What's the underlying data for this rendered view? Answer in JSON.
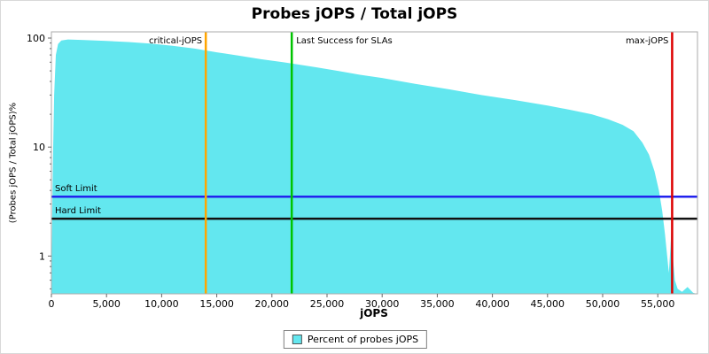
{
  "chart_data": {
    "type": "area",
    "title": "Probes jOPS / Total jOPS",
    "xlabel": "jOPS",
    "ylabel": "(Probes jOPS / Total jOPS)%",
    "x_scale": "linear",
    "y_scale": "log",
    "xlim": [
      0,
      58600
    ],
    "ylim": [
      0.45,
      114
    ],
    "grid": false,
    "x_ticks": {
      "values": [
        0,
        5000,
        10000,
        15000,
        20000,
        25000,
        30000,
        35000,
        40000,
        45000,
        50000,
        55000
      ],
      "labels": [
        "0",
        "5,000",
        "10,000",
        "15,000",
        "20,000",
        "25,000",
        "30,000",
        "35,000",
        "40,000",
        "45,000",
        "50,000",
        "55,000"
      ]
    },
    "y_ticks": {
      "values": [
        1,
        10,
        100
      ],
      "labels": [
        "1",
        "10",
        "100"
      ]
    },
    "series": [
      {
        "name": "Percent of probes jOPS",
        "color": "#63E7EF",
        "points": [
          [
            0,
            0.5
          ],
          [
            120,
            6
          ],
          [
            250,
            30
          ],
          [
            400,
            70
          ],
          [
            600,
            88
          ],
          [
            900,
            95
          ],
          [
            1500,
            97
          ],
          [
            3000,
            96
          ],
          [
            5000,
            94
          ],
          [
            7000,
            92
          ],
          [
            9000,
            89
          ],
          [
            11000,
            85
          ],
          [
            13000,
            80
          ],
          [
            14000,
            77
          ],
          [
            15000,
            74
          ],
          [
            17000,
            69
          ],
          [
            19000,
            64
          ],
          [
            21000,
            60
          ],
          [
            22000,
            58
          ],
          [
            24000,
            54
          ],
          [
            26000,
            50
          ],
          [
            28000,
            46
          ],
          [
            30000,
            43
          ],
          [
            33000,
            38
          ],
          [
            36000,
            34
          ],
          [
            39000,
            30
          ],
          [
            42000,
            27
          ],
          [
            45000,
            24
          ],
          [
            47000,
            22
          ],
          [
            49000,
            20
          ],
          [
            50500,
            18
          ],
          [
            51800,
            16
          ],
          [
            52800,
            14
          ],
          [
            53600,
            11
          ],
          [
            54200,
            8.5
          ],
          [
            54700,
            6
          ],
          [
            55100,
            4
          ],
          [
            55400,
            2.6
          ],
          [
            55650,
            1.6
          ],
          [
            55850,
            1.0
          ],
          [
            56000,
            0.7
          ],
          [
            56150,
            1.2
          ],
          [
            56280,
            2.1
          ],
          [
            56400,
            0.9
          ],
          [
            56550,
            0.6
          ],
          [
            56800,
            0.5
          ],
          [
            57200,
            0.47
          ],
          [
            57700,
            0.52
          ],
          [
            58200,
            0.46
          ],
          [
            58500,
            0.45
          ]
        ]
      }
    ],
    "markers": [
      {
        "id": "critical",
        "label": "critical-jOPS",
        "x": 14000,
        "color": "#FFA500",
        "align": "right"
      },
      {
        "id": "sla",
        "label": "Last Success for SLAs",
        "x": 21800,
        "color": "#00C400",
        "align": "left"
      },
      {
        "id": "max",
        "label": "max-jOPS",
        "x": 56300,
        "color": "#DD0000",
        "align": "right"
      }
    ],
    "limits": [
      {
        "id": "soft",
        "label": "Soft Limit",
        "y": 3.5,
        "color": "#2222EE"
      },
      {
        "id": "hard",
        "label": "Hard Limit",
        "y": 2.2,
        "color": "#111111"
      }
    ],
    "legend": {
      "position": "bottom",
      "entries": [
        {
          "label": "Percent of probes jOPS",
          "color": "#63E7EF"
        }
      ]
    },
    "colors": {
      "plot_border": "#ABABAB",
      "tick": "#666666",
      "text": "#000000"
    }
  }
}
